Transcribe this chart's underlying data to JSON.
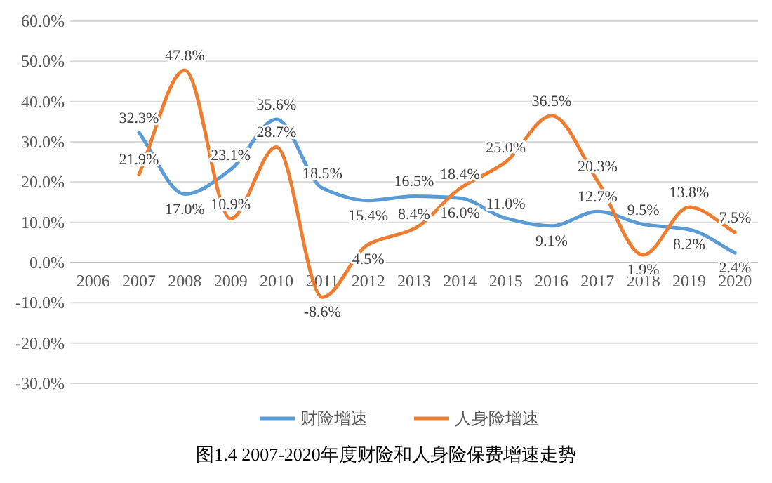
{
  "chart_data": {
    "type": "line",
    "title": "图1.4  2007-2020年度财险和人身险保费增速走势",
    "categories": [
      "2006",
      "2007",
      "2008",
      "2009",
      "2010",
      "2011",
      "2012",
      "2013",
      "2014",
      "2015",
      "2016",
      "2017",
      "2018",
      "2019",
      "2020"
    ],
    "series": [
      {
        "name": "财险增速",
        "color": "#5b9bd5",
        "values": [
          null,
          32.3,
          17.0,
          23.1,
          35.6,
          18.5,
          15.4,
          16.5,
          16.0,
          11.0,
          9.1,
          12.7,
          9.5,
          8.2,
          2.4
        ],
        "value_labels": [
          null,
          "32.3%",
          "17.0%",
          "23.1%",
          "35.6%",
          "18.5%",
          "15.4%",
          "16.5%",
          "16.0%",
          "11.0%",
          "9.1%",
          "12.7%",
          "9.5%",
          "8.2%",
          "2.4%"
        ]
      },
      {
        "name": "人身险增速",
        "color": "#ed7d31",
        "values": [
          null,
          21.9,
          47.8,
          10.9,
          28.7,
          -8.6,
          4.5,
          8.4,
          18.4,
          25.0,
          36.5,
          20.3,
          1.9,
          13.8,
          7.5
        ],
        "value_labels": [
          null,
          "21.9%",
          "47.8%",
          "10.9%",
          "28.7%",
          "-8.6%",
          "4.5%",
          "8.4%",
          "18.4%",
          "25.0%",
          "36.5%",
          "20.3%",
          "1.9%",
          "13.8%",
          "7.5%"
        ]
      }
    ],
    "ylim": [
      -30,
      60
    ],
    "yticks": [
      {
        "value": -30,
        "label": "-30.0%"
      },
      {
        "value": -20,
        "label": "-20.0%"
      },
      {
        "value": -10,
        "label": "-10.0%"
      },
      {
        "value": 0,
        "label": "0.0%"
      },
      {
        "value": 10,
        "label": "10.0%"
      },
      {
        "value": 20,
        "label": "20.0%"
      },
      {
        "value": 30,
        "label": "30.0%"
      },
      {
        "value": 40,
        "label": "40.0%"
      },
      {
        "value": 50,
        "label": "50.0%"
      },
      {
        "value": 60,
        "label": "60.0%"
      }
    ],
    "grid": "y",
    "legend": "bottom",
    "marker": "none",
    "line_style": "solid"
  }
}
